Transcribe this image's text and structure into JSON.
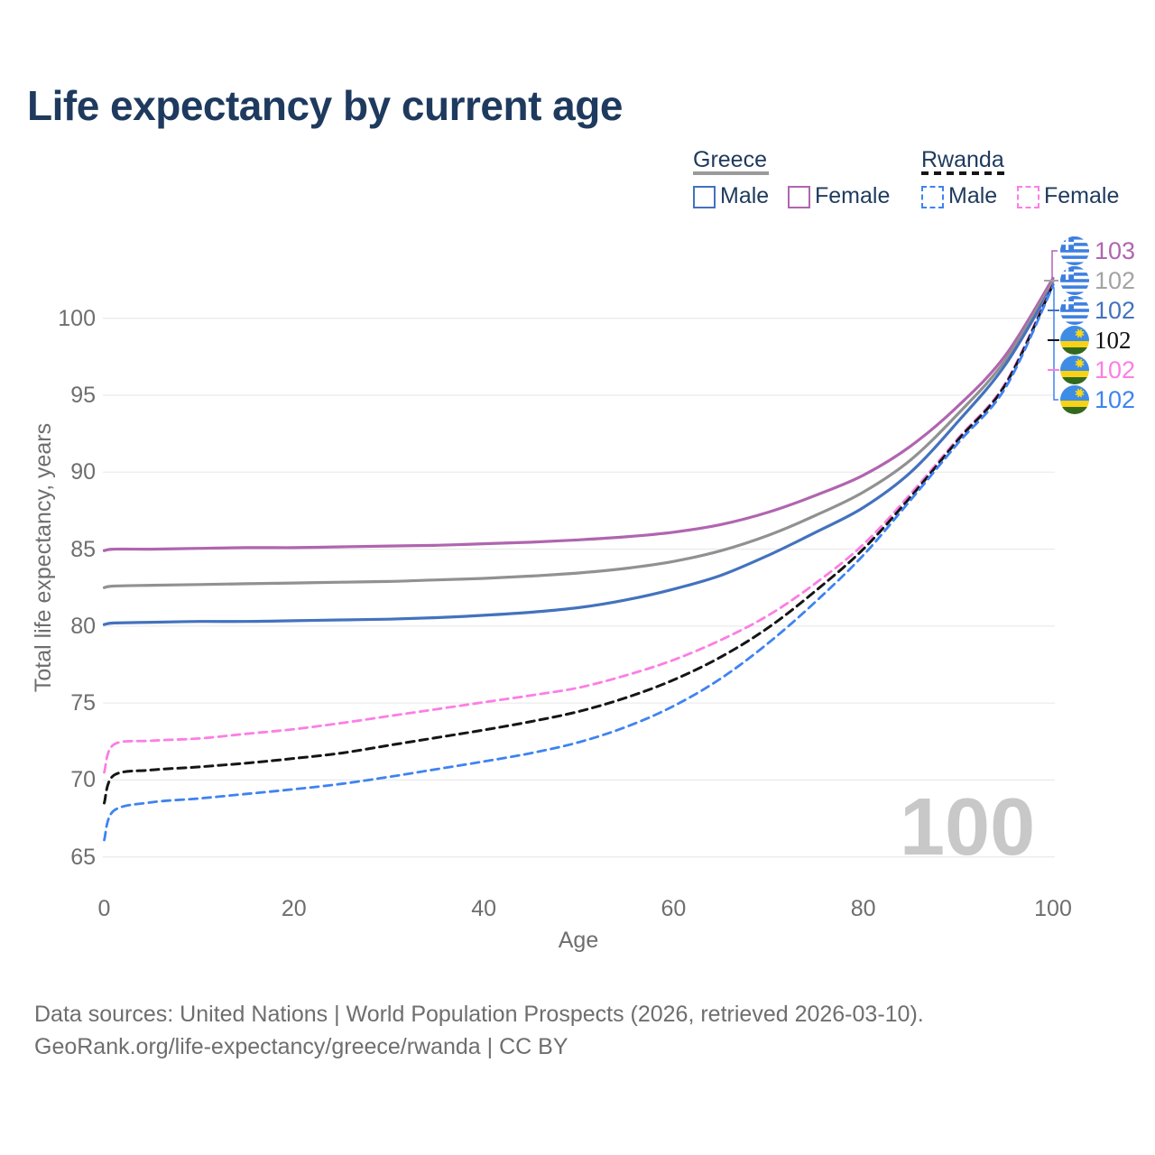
{
  "header": {
    "title": "Life expectancy by current age",
    "title_color": "#1e3a5e"
  },
  "legend": {
    "text_color": "#1e3a5e",
    "groups": [
      {
        "name": "Greece",
        "line_style": "solid",
        "underline_color": "#9a9a9a",
        "items": [
          {
            "label": "Male",
            "swatch_color": "#4372be",
            "swatch_style": "solid"
          },
          {
            "label": "Female",
            "swatch_color": "#b065af",
            "swatch_style": "solid"
          }
        ]
      },
      {
        "name": "Rwanda",
        "line_style": "dashed",
        "underline_color": "#151515",
        "items": [
          {
            "label": "Male",
            "swatch_color": "#3e83f2",
            "swatch_style": "dashed"
          },
          {
            "label": "Female",
            "swatch_color": "#fc7ee3",
            "swatch_style": "dashed"
          }
        ]
      }
    ]
  },
  "chart_data": {
    "type": "line",
    "title": "Life expectancy by current age",
    "xlabel": "Age",
    "ylabel": "Total life expectancy, years",
    "xlim": [
      0,
      100
    ],
    "ylim": [
      65,
      100
    ],
    "x_ticks": [
      "0",
      "20",
      "40",
      "60",
      "80",
      "100"
    ],
    "x_tick_values": [
      0,
      20,
      40,
      60,
      80,
      100
    ],
    "y_ticks": [
      "65",
      "70",
      "75",
      "80",
      "85",
      "90",
      "95",
      "100"
    ],
    "y_tick_values": [
      65,
      70,
      75,
      80,
      85,
      90,
      95,
      100
    ],
    "grid": "horizontal-only",
    "grid_color": "#ebebeb",
    "legend_position": "top-right",
    "watermark": "100",
    "x": [
      0,
      1,
      5,
      10,
      15,
      20,
      25,
      30,
      35,
      40,
      45,
      50,
      55,
      60,
      65,
      70,
      75,
      80,
      85,
      90,
      95,
      100
    ],
    "series": [
      {
        "name": "Greece Female",
        "country": "Greece",
        "sex": "female",
        "color": "#b065af",
        "dash": null,
        "width": 3.2,
        "values": [
          84.9,
          85.0,
          85.0,
          85.05,
          85.1,
          85.1,
          85.15,
          85.2,
          85.25,
          85.35,
          85.45,
          85.6,
          85.8,
          86.1,
          86.6,
          87.4,
          88.5,
          89.8,
          91.7,
          94.3,
          97.6,
          102.6
        ]
      },
      {
        "name": "Greece Both sexes",
        "country": "Greece",
        "sex": "both",
        "color": "#919191",
        "dash": null,
        "width": 3.2,
        "values": [
          82.5,
          82.6,
          82.65,
          82.7,
          82.75,
          82.8,
          82.85,
          82.9,
          83.0,
          83.1,
          83.25,
          83.45,
          83.75,
          84.2,
          84.9,
          85.9,
          87.2,
          88.7,
          90.8,
          93.8,
          97.3,
          102.4
        ]
      },
      {
        "name": "Greece Male",
        "country": "Greece",
        "sex": "male",
        "color": "#4372be",
        "dash": null,
        "width": 3.2,
        "values": [
          80.1,
          80.2,
          80.25,
          80.3,
          80.3,
          80.35,
          80.4,
          80.45,
          80.55,
          80.7,
          80.9,
          81.2,
          81.7,
          82.4,
          83.3,
          84.6,
          86.1,
          87.7,
          90.0,
          93.3,
          97.0,
          102.2
        ]
      },
      {
        "name": "Rwanda Female",
        "country": "Rwanda",
        "sex": "female",
        "color": "#fc7ee3",
        "dash": "9 6",
        "width": 2.8,
        "values": [
          70.5,
          72.3,
          72.55,
          72.7,
          73.0,
          73.3,
          73.7,
          74.15,
          74.6,
          75.05,
          75.5,
          76.0,
          76.8,
          77.8,
          79.1,
          80.7,
          82.8,
          85.3,
          88.6,
          92.2,
          95.8,
          102.3
        ]
      },
      {
        "name": "Rwanda Both sexes",
        "country": "Rwanda",
        "sex": "both",
        "color": "#151515",
        "dash": "9 6",
        "width": 3.0,
        "values": [
          68.5,
          70.3,
          70.65,
          70.85,
          71.1,
          71.4,
          71.75,
          72.25,
          72.75,
          73.25,
          73.8,
          74.45,
          75.35,
          76.5,
          78.0,
          79.9,
          82.3,
          85.0,
          88.4,
          92.1,
          95.7,
          102.2
        ]
      },
      {
        "name": "Rwanda Male",
        "country": "Rwanda",
        "sex": "male",
        "color": "#3e83f2",
        "dash": "9 6",
        "width": 2.8,
        "values": [
          66.1,
          68.0,
          68.55,
          68.8,
          69.1,
          69.4,
          69.75,
          70.2,
          70.7,
          71.2,
          71.75,
          72.45,
          73.45,
          74.8,
          76.6,
          78.9,
          81.6,
          84.6,
          88.2,
          91.9,
          95.5,
          102.1
        ]
      }
    ],
    "end_labels": [
      {
        "country": "Greece",
        "sex": "female",
        "value": "103",
        "color": "#b065af",
        "serif": false
      },
      {
        "country": "Greece",
        "sex": "both",
        "value": "102",
        "color": "#a3a3a3",
        "serif": false
      },
      {
        "country": "Greece",
        "sex": "male",
        "value": "102",
        "color": "#4372be",
        "serif": false
      },
      {
        "country": "Rwanda",
        "sex": "both",
        "value": "102",
        "color": "#111111",
        "serif": true
      },
      {
        "country": "Rwanda",
        "sex": "female",
        "value": "102",
        "color": "#fc7ee3",
        "serif": false
      },
      {
        "country": "Rwanda",
        "sex": "male",
        "value": "102",
        "color": "#3e83f2",
        "serif": false
      }
    ]
  },
  "flags": {
    "greece": {
      "blue": "#3d7fe0",
      "white": "#ffffff"
    },
    "rwanda": {
      "blue": "#3e8ce4",
      "yellow": "#f8d216",
      "green": "#33691d",
      "sun": "#fcd813"
    }
  },
  "footer": {
    "color": "#6e6e6e",
    "line1": "Data sources: United Nations | World Population Prospects (2026, retrieved 2026-03-10).",
    "line2": "GeoRank.org/life-expectancy/greece/rwanda | CC BY"
  }
}
